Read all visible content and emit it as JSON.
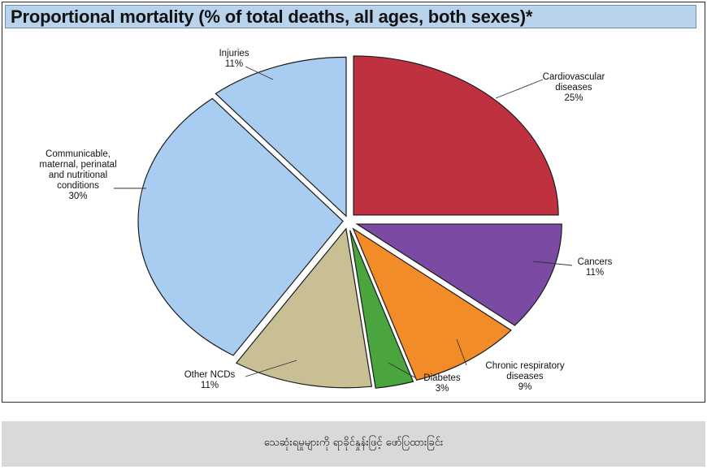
{
  "chart_data": {
    "type": "pie",
    "title": "Proportional mortality (% of total deaths, all ages, both sexes)*",
    "slices": [
      {
        "label_lines": [
          "Cardiovascular",
          "diseases",
          "25%"
        ],
        "name": "Cardiovascular diseases",
        "value": 25,
        "color": "#c0313f"
      },
      {
        "label_lines": [
          "Cancers",
          "11%"
        ],
        "name": "Cancers",
        "value": 11,
        "color": "#7b4aa3"
      },
      {
        "label_lines": [
          "Chronic respiratory",
          "diseases",
          "9%"
        ],
        "name": "Chronic respiratory diseases",
        "value": 9,
        "color": "#f28c28"
      },
      {
        "label_lines": [
          "Diabetes",
          "3%"
        ],
        "name": "Diabetes",
        "value": 3,
        "color": "#4aa53f"
      },
      {
        "label_lines": [
          "Other NCDs",
          "11%"
        ],
        "name": "Other NCDs",
        "value": 11,
        "color": "#c9bf95"
      },
      {
        "label_lines": [
          "Communicable,",
          "maternal, perinatal",
          "and nutritional",
          "conditions",
          "30%"
        ],
        "name": "Communicable, maternal, perinatal and nutritional conditions",
        "value": 30,
        "color": "#a9cdf0"
      },
      {
        "label_lines": [
          "Injuries",
          "11%"
        ],
        "name": "Injuries",
        "value": 11,
        "color": "#a9cdf0"
      }
    ]
  },
  "caption": "သေဆုံးရမှုများကို ရာခိုင်နှုန်းဖြင့် ဖော်ပြထားခြင်း"
}
